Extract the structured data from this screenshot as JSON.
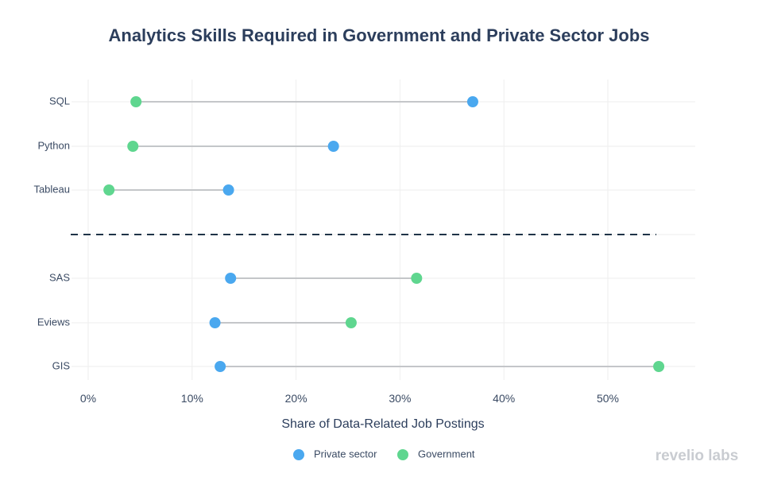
{
  "chart_data": {
    "type": "dumbbell",
    "title": "Analytics Skills Required in Government and Private Sector Jobs",
    "xlabel": "Share of Data-Related Job Postings",
    "xlim": [
      0,
      58
    ],
    "x_ticks": [
      0,
      10,
      20,
      30,
      40,
      50
    ],
    "x_tick_labels": [
      "0%",
      "10%",
      "20%",
      "30%",
      "40%",
      "50%"
    ],
    "categories": [
      "SQL",
      "Python",
      "Tableau",
      "SAS",
      "Eviews",
      "GIS"
    ],
    "separator_after_index": 2,
    "grid": true,
    "legend_position": "bottom",
    "series": [
      {
        "name": "Private sector",
        "color": "#4aa8ef",
        "values": [
          37.0,
          23.6,
          13.5,
          13.7,
          12.2,
          12.7
        ]
      },
      {
        "name": "Government",
        "color": "#5fd68f",
        "values": [
          4.6,
          4.3,
          2.0,
          31.6,
          25.3,
          54.9
        ]
      }
    ]
  },
  "brand": "revelio labs",
  "colors": {
    "title": "#2c3e5c",
    "connector": "#c4c6c9",
    "separator": "#1f3347",
    "grid": "#eeeeee"
  }
}
